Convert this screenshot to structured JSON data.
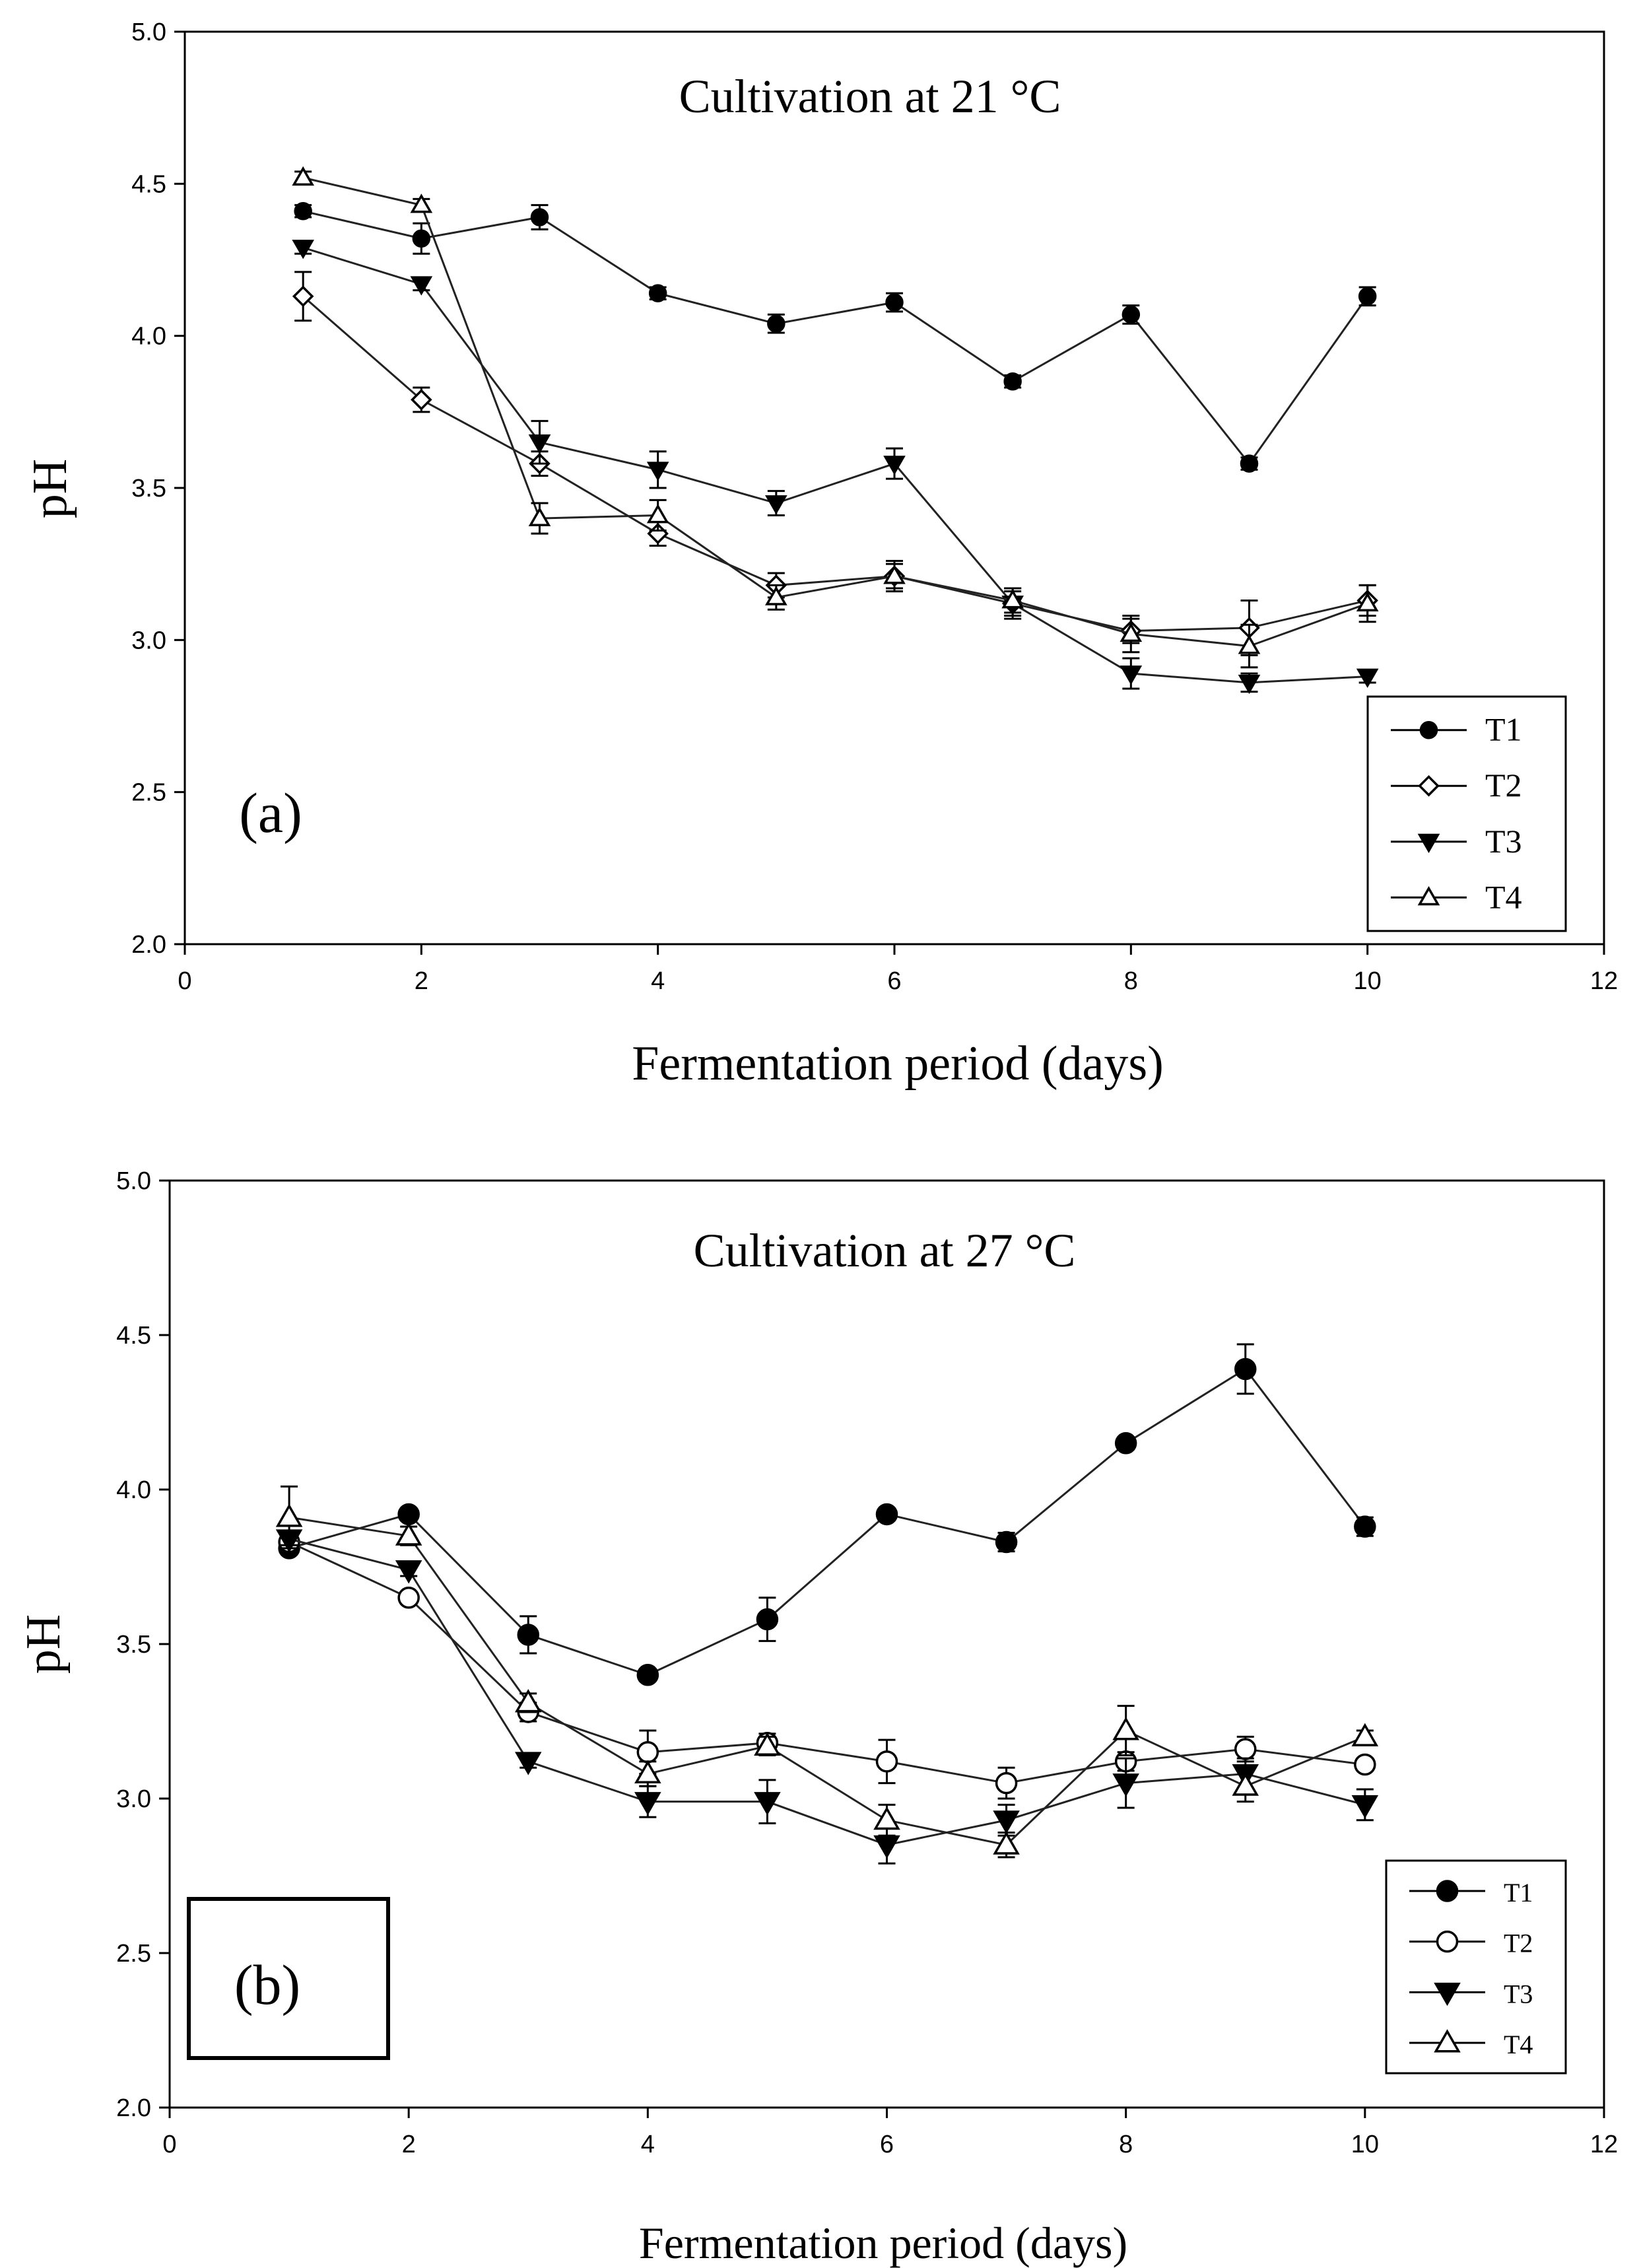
{
  "chart_data": [
    {
      "type": "line",
      "panel_label": "(a)",
      "title": "Cultivation at 21 °C",
      "xlabel": "Fermentation period (days)",
      "ylabel": "pH",
      "xlim": [
        0,
        12
      ],
      "ylim": [
        2.0,
        5.0
      ],
      "xticks": [
        0,
        2,
        4,
        6,
        8,
        10,
        12
      ],
      "xtick_labels": [
        "0",
        "2",
        "4",
        "6",
        "8",
        "10",
        "12"
      ],
      "yticks": [
        2.0,
        2.5,
        3.0,
        3.5,
        4.0,
        4.5,
        5.0
      ],
      "ytick_labels": [
        "2.0",
        "2.5",
        "3.0",
        "3.5",
        "4.0",
        "4.5",
        "5.0"
      ],
      "legend_position": "bottom-right",
      "x": [
        1,
        2,
        3,
        4,
        5,
        6,
        7,
        8,
        9,
        10
      ],
      "series": [
        {
          "name": "T1",
          "marker": "circle-filled",
          "values": [
            4.41,
            4.32,
            4.39,
            4.14,
            4.04,
            4.11,
            3.85,
            4.07,
            3.58,
            4.13
          ],
          "errors": [
            0.02,
            0.05,
            0.04,
            0.02,
            0.03,
            0.03,
            0.02,
            0.03,
            0.02,
            0.03
          ]
        },
        {
          "name": "T2",
          "marker": "diamond-open",
          "values": [
            4.13,
            3.79,
            3.58,
            3.35,
            3.18,
            3.21,
            3.12,
            3.03,
            3.04,
            3.13
          ],
          "errors": [
            0.08,
            0.04,
            0.04,
            0.04,
            0.04,
            0.04,
            0.04,
            0.04,
            0.09,
            0.05
          ]
        },
        {
          "name": "T3",
          "marker": "triangle-down-filled",
          "values": [
            4.29,
            4.17,
            3.65,
            3.56,
            3.45,
            3.58,
            3.12,
            2.89,
            2.86,
            2.88
          ],
          "errors": [
            0.02,
            0.02,
            0.07,
            0.06,
            0.04,
            0.05,
            0.05,
            0.05,
            0.03,
            0.02
          ]
        },
        {
          "name": "T4",
          "marker": "triangle-up-open",
          "values": [
            4.52,
            4.43,
            3.4,
            3.41,
            3.14,
            3.21,
            3.13,
            3.02,
            2.98,
            3.12
          ],
          "errors": [
            0.02,
            0.02,
            0.05,
            0.05,
            0.04,
            0.05,
            0.04,
            0.06,
            0.07,
            0.06
          ]
        }
      ]
    },
    {
      "type": "line",
      "panel_label": "(b)",
      "title": "Cultivation at 27 °C",
      "xlabel": "Fermentation period (days)",
      "ylabel": "pH",
      "xlim": [
        0,
        12
      ],
      "ylim": [
        2.0,
        5.0
      ],
      "xticks": [
        0,
        2,
        4,
        6,
        8,
        10,
        12
      ],
      "xtick_labels": [
        "0",
        "2",
        "4",
        "6",
        "8",
        "10",
        "12"
      ],
      "yticks": [
        2.0,
        2.5,
        3.0,
        3.5,
        4.0,
        4.5,
        5.0
      ],
      "ytick_labels": [
        "2.0",
        "2.5",
        "3.0",
        "3.5",
        "4.0",
        "4.5",
        "5.0"
      ],
      "legend_position": "bottom-right",
      "x": [
        1,
        2,
        3,
        4,
        5,
        6,
        7,
        8,
        9,
        10
      ],
      "series": [
        {
          "name": "T1",
          "marker": "circle-filled",
          "values": [
            3.81,
            3.92,
            3.53,
            3.4,
            3.58,
            3.92,
            3.83,
            4.15,
            4.39,
            3.88
          ],
          "errors": [
            0.02,
            0.02,
            0.06,
            0.02,
            0.07,
            0.02,
            0.03,
            0.02,
            0.08,
            0.03
          ]
        },
        {
          "name": "T2",
          "marker": "circle-open",
          "values": [
            3.83,
            3.65,
            3.28,
            3.15,
            3.18,
            3.12,
            3.05,
            3.12,
            3.16,
            3.11
          ],
          "errors": [
            0.02,
            0.02,
            0.03,
            0.07,
            0.03,
            0.07,
            0.05,
            0.03,
            0.04,
            0.02
          ]
        },
        {
          "name": "T3",
          "marker": "triangle-down-filled",
          "values": [
            3.84,
            3.74,
            3.12,
            2.99,
            2.99,
            2.85,
            2.93,
            3.05,
            3.08,
            2.98
          ],
          "errors": [
            0.02,
            0.02,
            0.02,
            0.05,
            0.07,
            0.06,
            0.05,
            0.08,
            0.05,
            0.05
          ]
        },
        {
          "name": "T4",
          "marker": "triangle-up-open",
          "values": [
            3.91,
            3.85,
            3.31,
            3.08,
            3.17,
            2.93,
            2.85,
            3.22,
            3.04,
            3.2
          ],
          "errors": [
            0.1,
            0.03,
            0.03,
            0.04,
            0.03,
            0.05,
            0.04,
            0.08,
            0.05,
            0.02
          ]
        }
      ]
    }
  ]
}
